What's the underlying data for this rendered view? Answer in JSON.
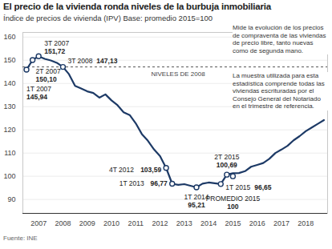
{
  "chart_data": {
    "type": "line",
    "title": "El precio de la vivienda ronda niveles de la burbuja inmobiliaria",
    "subtitle": "Índice de precios de vivienda (IPV) Base: promedio 2015=100",
    "source": "Fuente: INE",
    "notes": [
      "Mide la evolución de los precios de compraventa de las viviendas de precio libre, tanto nuevas como de segunda mano.",
      "La muestra utilizada para esta estadística comprende todas las viviendas escrituradas por el Consejo General del Notariado en el trimestre de referencia."
    ],
    "color": "#1d3a66",
    "x": [
      2007,
      2007.25,
      2007.5,
      2007.75,
      2008,
      2008.25,
      2008.5,
      2008.75,
      2009,
      2009.25,
      2009.5,
      2009.75,
      2010,
      2010.25,
      2010.5,
      2010.75,
      2011,
      2011.25,
      2011.5,
      2011.75,
      2012,
      2012.25,
      2012.5,
      2012.75,
      2013,
      2013.25,
      2013.5,
      2013.75,
      2014,
      2014.25,
      2014.5,
      2014.75,
      2015,
      2015.25,
      2015.5,
      2015.75,
      2016,
      2016.25,
      2016.5,
      2016.75,
      2017,
      2017.25,
      2017.5,
      2017.75,
      2018,
      2018.25,
      2018.5,
      2018.75,
      2019,
      2019.25
    ],
    "values": [
      145.94,
      150.1,
      151.72,
      150.6,
      149.9,
      148.9,
      147.13,
      144.0,
      139.0,
      137.8,
      136.6,
      135.9,
      133.9,
      135.3,
      132.7,
      130.6,
      127.6,
      126.4,
      122.8,
      118.2,
      115.3,
      111.6,
      108.7,
      103.59,
      96.77,
      96.3,
      96.6,
      95.9,
      95.21,
      96.8,
      97.3,
      97.0,
      96.65,
      100.69,
      101.3,
      101.4,
      102.2,
      104.1,
      104.9,
      105.7,
      107.5,
      110.0,
      111.5,
      113.1,
      115.5,
      117.3,
      119.4,
      121.0,
      122.6,
      124.2
    ],
    "xlim": [
      2006.85,
      2019.4
    ],
    "xticks": [
      {
        "value": 2007.5,
        "label": "2007"
      },
      {
        "value": 2008.5,
        "label": "2008"
      },
      {
        "value": 2009.5,
        "label": "2009"
      },
      {
        "value": 2010.5,
        "label": "2010"
      },
      {
        "value": 2011.5,
        "label": "2011"
      },
      {
        "value": 2012.5,
        "label": "2012"
      },
      {
        "value": 2013.5,
        "label": "2013"
      },
      {
        "value": 2014.5,
        "label": "2014"
      },
      {
        "value": 2015.5,
        "label": "2015"
      },
      {
        "value": 2016.5,
        "label": "2016"
      },
      {
        "value": 2017.5,
        "label": "2017"
      },
      {
        "value": 2018.5,
        "label": "2018"
      }
    ],
    "ylim": [
      84,
      162
    ],
    "yticks": [
      90,
      100,
      110,
      120,
      130,
      140,
      150,
      160
    ],
    "grid": true,
    "reference_lines": [
      {
        "value": 147.13,
        "label": "NIVELES DE 2008"
      }
    ],
    "annotations": [
      {
        "x": 2007.5,
        "y": 151.72,
        "label": "3T 2007",
        "value_label": "151,72"
      },
      {
        "x": 2007.25,
        "y": 150.1,
        "label": "2T 2007",
        "value_label": "150,10"
      },
      {
        "x": 2007,
        "y": 145.94,
        "label": "1T 2007",
        "value_label": "145,94"
      },
      {
        "x": 2008.5,
        "y": 147.13,
        "label": "3T 2008",
        "value_label": "147,13"
      },
      {
        "x": 2012.75,
        "y": 103.59,
        "label": "4T 2012",
        "value_label": "103,59"
      },
      {
        "x": 2013,
        "y": 96.77,
        "label": "1T 2013",
        "value_label": "96,77"
      },
      {
        "x": 2014,
        "y": 95.21,
        "label": "1T 2014",
        "value_label": "95,21"
      },
      {
        "x": 2015.5,
        "y": 100,
        "label": "PROMEDIO 2015",
        "value_label": "100"
      },
      {
        "x": 2015.25,
        "y": 100.69,
        "label": "2T 2015",
        "value_label": "100,69"
      },
      {
        "x": 2015,
        "y": 96.65,
        "label": "1T 2015",
        "value_label": "96,65"
      }
    ]
  }
}
